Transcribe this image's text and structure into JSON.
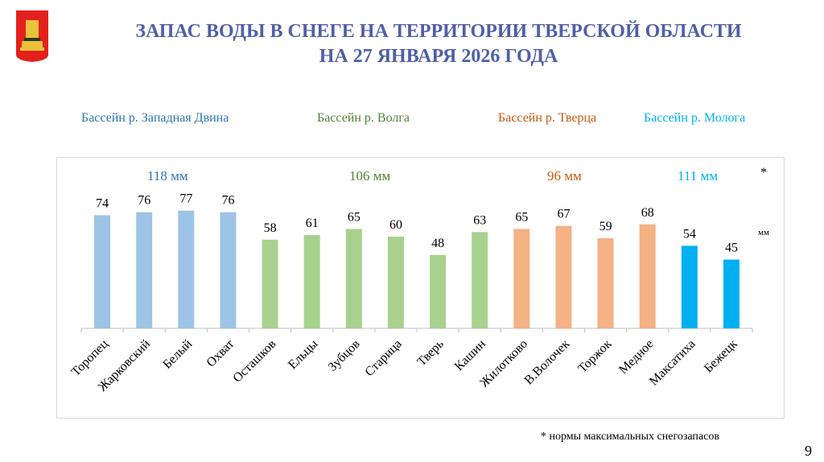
{
  "title": {
    "line1": "ЗАПАС ВОДЫ В СНЕГЕ НА ТЕРРИТОРИИ ТВЕРСКОЙ ОБЛАСТИ",
    "line2": "НА 27 ЯНВАРЯ 2026 ГОДА"
  },
  "basins": [
    {
      "label": "Бассейн р. Западная Двина",
      "norm": "118 мм",
      "color": "#2E75B6"
    },
    {
      "label": "Бассейн р. Волга",
      "norm": "106 мм",
      "color": "#548235"
    },
    {
      "label": "Бассейн р. Тверца",
      "norm": "96 мм",
      "color": "#C55A11"
    },
    {
      "label": "Бассейн р. Молога",
      "norm": "111 мм",
      "color": "#00B0F0"
    }
  ],
  "star": "*",
  "unit": "мм",
  "footnote": "* нормы максимальных снегозапасов",
  "page_number": "9",
  "chart_data": {
    "type": "bar",
    "title": "",
    "xlabel": "",
    "ylabel": "мм",
    "ylim": [
      0,
      100
    ],
    "categories": [
      "Торопец",
      "Жарковский",
      "Белый",
      "Охват",
      "Осташков",
      "Ельцы",
      "Зубцов",
      "Старица",
      "Тверь",
      "Кашин",
      "Жилотково",
      "В.Волочек",
      "Торжок",
      "Медное",
      "Максатиха",
      "Бежецк"
    ],
    "values": [
      74,
      76,
      77,
      76,
      58,
      61,
      65,
      60,
      48,
      63,
      65,
      67,
      59,
      68,
      54,
      45
    ],
    "basin_index": [
      0,
      0,
      0,
      0,
      1,
      1,
      1,
      1,
      1,
      1,
      2,
      2,
      2,
      2,
      3,
      3
    ],
    "bar_colors": [
      "#9DC3E6",
      "#A9D18E",
      "#F4B183",
      "#00B0F0"
    ]
  }
}
